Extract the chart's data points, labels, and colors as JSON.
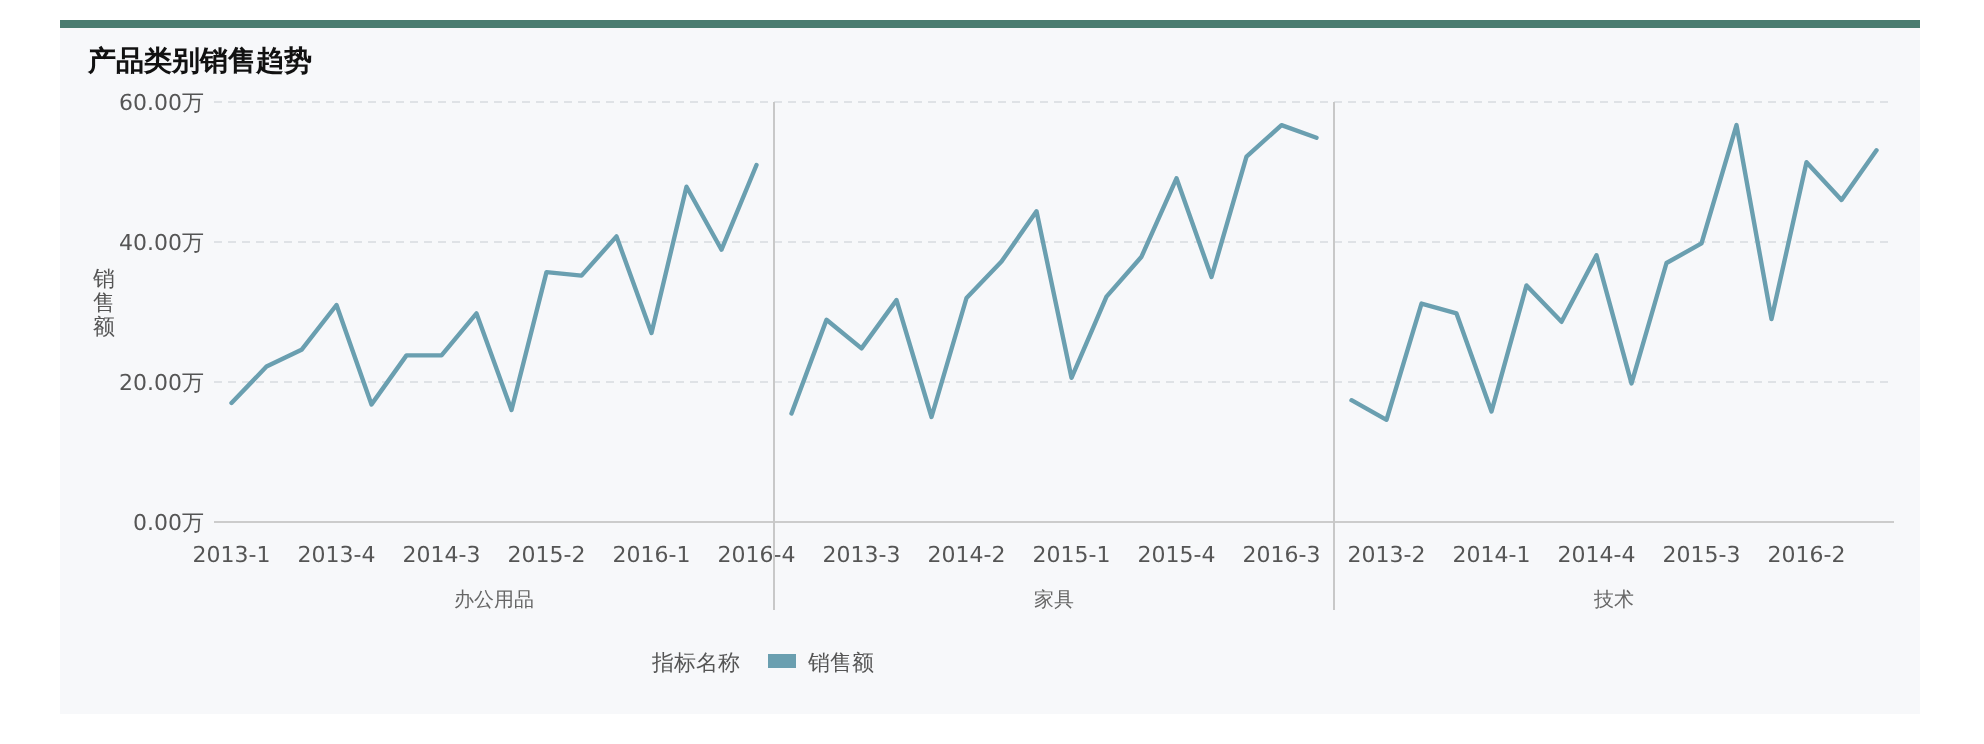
{
  "chart_data": [
    {
      "type": "line",
      "title": "产品类别销售趋势",
      "xlabel": "办公用品",
      "ylabel": "销售额",
      "legend_title": "指标名称",
      "legend": "bottom",
      "grid": "y",
      "ylim": [
        0,
        60
      ],
      "yticks": [
        {
          "value": 0,
          "label": "0.00万"
        },
        {
          "value": 20,
          "label": "20.00万"
        },
        {
          "value": 40,
          "label": "40.00万"
        },
        {
          "value": 60,
          "label": "60.00万"
        }
      ],
      "categories": [
        "2013-1",
        null,
        null,
        "2013-4",
        null,
        null,
        "2014-3",
        null,
        null,
        "2015-2",
        null,
        null,
        "2016-1",
        null,
        null,
        "2016-4"
      ],
      "series": [
        {
          "name": "销售额",
          "color": "#6a9fb0",
          "values": [
            17.0,
            22.2,
            24.6,
            31.0,
            16.8,
            23.8,
            23.8,
            29.8,
            16.0,
            35.7,
            35.2,
            40.8,
            27.0,
            47.9,
            38.9,
            51.0
          ]
        }
      ]
    },
    {
      "type": "line",
      "xlabel": "家具",
      "grid": "y",
      "ylim": [
        0,
        60
      ],
      "tick_labels": "x",
      "yticks": [
        {
          "value": 0,
          "label": null
        },
        {
          "value": 20,
          "label": null
        },
        {
          "value": 40,
          "label": null
        },
        {
          "value": 60,
          "label": null
        }
      ],
      "categories": [
        null,
        null,
        "2013-3",
        null,
        null,
        "2014-2",
        null,
        null,
        "2015-1",
        null,
        null,
        "2015-4",
        null,
        null,
        "2016-3",
        null
      ],
      "series": [
        {
          "color": "#6a9fb0",
          "values": [
            15.5,
            28.9,
            24.8,
            31.7,
            15.0,
            32.0,
            37.2,
            44.4,
            20.6,
            32.2,
            37.9,
            49.1,
            35.0,
            52.2,
            56.7,
            54.9
          ]
        }
      ]
    },
    {
      "type": "line",
      "xlabel": "技术",
      "grid": "y",
      "ylim": [
        0,
        60
      ],
      "tick_labels": "x",
      "yticks": [
        {
          "value": 0,
          "label": null
        },
        {
          "value": 20,
          "label": null
        },
        {
          "value": 40,
          "label": null
        },
        {
          "value": 60,
          "label": null
        }
      ],
      "categories": [
        null,
        "2013-2",
        null,
        null,
        "2014-1",
        null,
        null,
        "2014-4",
        null,
        null,
        "2015-3",
        null,
        null,
        "2016-2",
        null,
        null
      ],
      "series": [
        {
          "color": "#6a9fb0",
          "values": [
            17.4,
            14.6,
            31.2,
            29.8,
            15.8,
            33.8,
            28.6,
            38.1,
            19.8,
            37.0,
            39.8,
            56.7,
            29.0,
            51.4,
            46.0,
            53.1
          ]
        }
      ]
    }
  ]
}
